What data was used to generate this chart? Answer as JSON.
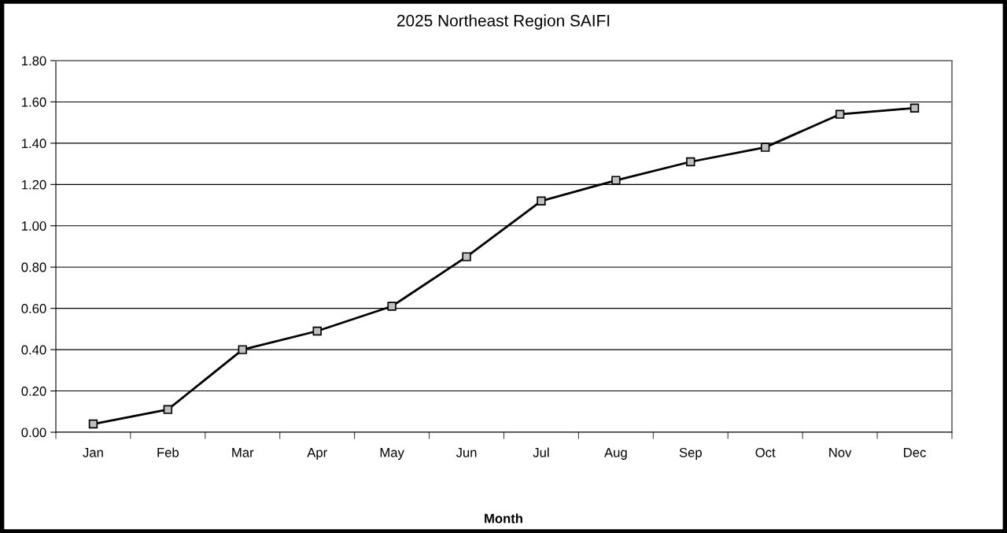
{
  "chart_data": {
    "type": "line",
    "title": "2025 Northeast Region SAIFI",
    "xlabel": "Month",
    "categories": [
      "Jan",
      "Feb",
      "Mar",
      "Apr",
      "May",
      "Jun",
      "Jul",
      "Aug",
      "Sep",
      "Oct",
      "Nov",
      "Dec"
    ],
    "series": [
      {
        "color": "#000000",
        "values": [
          0.04,
          0.11,
          0.4,
          0.49,
          0.61,
          0.85,
          1.12,
          1.22,
          1.31,
          1.38,
          1.54,
          1.57
        ]
      }
    ],
    "ylim": [
      0,
      1.8
    ],
    "yticks": [
      {
        "value": 0,
        "label": "0.00"
      },
      {
        "value": 0.2,
        "label": "0.20"
      },
      {
        "value": 0.4,
        "label": "0.40"
      },
      {
        "value": 0.6,
        "label": "0.60"
      },
      {
        "value": 0.8,
        "label": "0.80"
      },
      {
        "value": 1.0,
        "label": "1.00"
      },
      {
        "value": 1.2,
        "label": "1.20"
      },
      {
        "value": 1.4,
        "label": "1.40"
      },
      {
        "value": 1.6,
        "label": "1.60"
      },
      {
        "value": 1.8,
        "label": "1.80"
      }
    ],
    "grid": "y",
    "marker": "square",
    "line_style": "solid",
    "legend": false
  }
}
